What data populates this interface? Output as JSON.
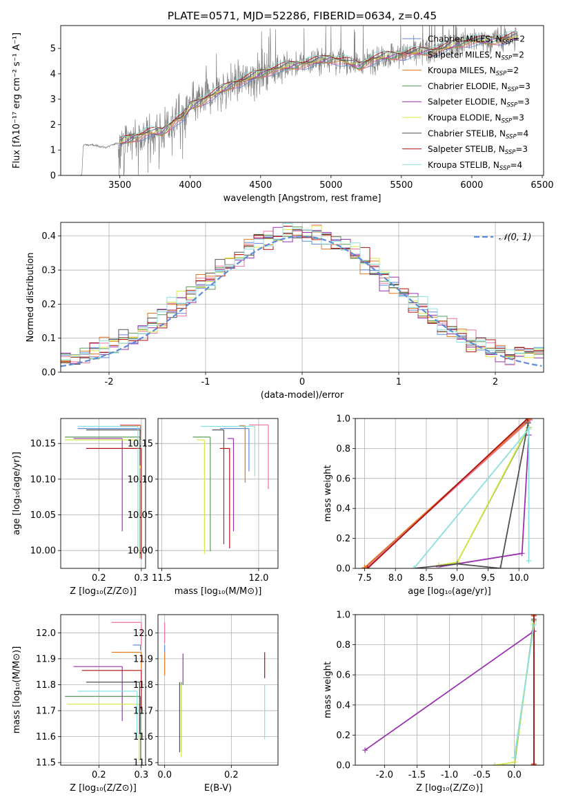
{
  "colors": {
    "chabrier_miles": "#5b8bd9",
    "salpeter_miles": "#f07098",
    "kroupa_miles": "#e07820",
    "chabrier_elodie": "#5a9a5a",
    "salpeter_elodie": "#9a30b0",
    "kroupa_elodie": "#d8e840",
    "chabrier_stelib": "#505050",
    "salpeter_stelib": "#b01010",
    "kroupa_stelib": "#88e0e0",
    "data": "#808080",
    "gauss": "#5b8bd9",
    "grid": "#b0b0b0"
  },
  "chart_data": [
    {
      "id": "spectrum",
      "type": "line",
      "title": "PLATE=0571, MJD=52286, FIBERID=0634, z=0.45",
      "xlabel": "wavelength [Angstrom, rest frame]",
      "ylabel": "Flux [fλ10⁻¹⁷ erg cm⁻² s⁻¹ A⁻¹]",
      "xlim": [
        3080,
        6510
      ],
      "ylim": [
        0,
        5.9
      ],
      "xticks": [
        3500,
        4000,
        4500,
        5000,
        5500,
        6000,
        6500
      ],
      "yticks": [
        0,
        1,
        2,
        3,
        4,
        5
      ],
      "grid": false,
      "legend_position": "top-right",
      "continuum": [
        [
          3210,
          0.0
        ],
        [
          3230,
          0.0
        ],
        [
          3240,
          1.2
        ],
        [
          3300,
          1.2
        ],
        [
          3400,
          1.1
        ],
        [
          3500,
          1.3
        ],
        [
          3600,
          1.5
        ],
        [
          3700,
          1.7
        ],
        [
          3800,
          1.7
        ],
        [
          3900,
          2.2
        ],
        [
          3950,
          2.3
        ],
        [
          4000,
          2.7
        ],
        [
          4100,
          3.0
        ],
        [
          4200,
          3.3
        ],
        [
          4300,
          3.6
        ],
        [
          4400,
          3.8
        ],
        [
          4500,
          4.0
        ],
        [
          4600,
          4.2
        ],
        [
          4700,
          4.3
        ],
        [
          4800,
          4.4
        ],
        [
          4900,
          4.5
        ],
        [
          5000,
          4.6
        ],
        [
          5100,
          4.5
        ],
        [
          5200,
          4.3
        ],
        [
          5300,
          4.6
        ],
        [
          5400,
          4.7
        ],
        [
          5500,
          4.75
        ],
        [
          5600,
          4.85
        ],
        [
          5700,
          4.9
        ],
        [
          5800,
          5.0
        ],
        [
          5900,
          5.2
        ],
        [
          6000,
          5.3
        ],
        [
          6100,
          5.3
        ],
        [
          6200,
          5.35
        ],
        [
          6300,
          5.45
        ],
        [
          6330,
          5.45
        ]
      ],
      "series": [
        {
          "name": "Chabrier MILES, N_SSP=2",
          "color_key": "chabrier_miles"
        },
        {
          "name": "Salpeter MILES, N_SSP=2",
          "color_key": "salpeter_miles"
        },
        {
          "name": "Kroupa MILES, N_SSP=2",
          "color_key": "kroupa_miles"
        },
        {
          "name": "Chabrier ELODIE, N_SSP=3",
          "color_key": "chabrier_elodie"
        },
        {
          "name": "Salpeter ELODIE, N_SSP=3",
          "color_key": "salpeter_elodie"
        },
        {
          "name": "Kroupa ELODIE, N_SSP=3",
          "color_key": "kroupa_elodie"
        },
        {
          "name": "Chabrier STELIB, N_SSP=4",
          "color_key": "chabrier_stelib"
        },
        {
          "name": "Salpeter STELIB, N_SSP=3",
          "color_key": "salpeter_stelib"
        },
        {
          "name": "Kroupa STELIB, N_SSP=4",
          "color_key": "kroupa_stelib"
        }
      ]
    },
    {
      "id": "residuals",
      "type": "line",
      "xlabel": "(data-model)/error",
      "ylabel": "Normed distribution",
      "xlim": [
        -2.5,
        2.5
      ],
      "ylim": [
        0,
        0.44
      ],
      "xticks": [
        -2,
        -1,
        0,
        1,
        2
      ],
      "yticks": [
        0.0,
        0.1,
        0.2,
        0.3,
        0.4
      ],
      "grid": true,
      "legend_position": "top-right",
      "gaussian_label": "𝒩(0, 1)",
      "bin_width": 0.1
    },
    {
      "id": "age_vs_z",
      "type": "scatter",
      "xlabel": "Z [log₁₀(Z/Z⊙)]",
      "ylabel": "age  [log₁₀(age/yr)]",
      "xlim": [
        0.11,
        0.31
      ],
      "ylim": [
        9.975,
        10.185
      ],
      "xticks": [
        0.2,
        0.3
      ],
      "yticks": [
        10.0,
        10.05,
        10.1,
        10.15
      ],
      "grid": true,
      "points": [
        {
          "color_key": "chabrier_miles",
          "x": 0.298,
          "y": 10.171,
          "xlo": 0.15,
          "yerr_lo": 0.005
        },
        {
          "color_key": "salpeter_miles",
          "x": 0.298,
          "y": 10.176,
          "xlo": 0.25,
          "yerr_lo": 0.012
        },
        {
          "color_key": "kroupa_miles",
          "x": 0.298,
          "y": 10.175,
          "xlo": 0.25,
          "yerr_lo": 0.02
        },
        {
          "color_key": "chabrier_elodie",
          "x": 0.297,
          "y": 10.159,
          "xlo": 0.12,
          "yerr_lo": 0.17
        },
        {
          "color_key": "salpeter_elodie",
          "x": 0.255,
          "y": 10.157,
          "xlo": 0.14,
          "yerr_lo": 0.13
        },
        {
          "color_key": "kroupa_elodie",
          "x": 0.297,
          "y": 10.155,
          "xlo": 0.12,
          "yerr_lo": 0.04
        },
        {
          "color_key": "chabrier_stelib",
          "x": 0.297,
          "y": 10.169,
          "xlo": 0.17,
          "yerr_lo": 0.05
        },
        {
          "color_key": "salpeter_stelib",
          "x": 0.3,
          "y": 10.143,
          "xlo": 0.17,
          "yerr_lo": 0.155
        },
        {
          "color_key": "kroupa_stelib",
          "x": 0.292,
          "y": 10.174,
          "xlo": 0.15,
          "yerr_lo": 0.17
        }
      ]
    },
    {
      "id": "age_vs_mass",
      "type": "scatter",
      "xlabel": "mass [log₁₀(M/M⊙)]",
      "xlim": [
        11.48,
        12.1
      ],
      "ylim": [
        9.975,
        10.185
      ],
      "xticks": [
        11.5,
        12.0
      ],
      "yticks": [
        10.0,
        10.05,
        10.1,
        10.15
      ],
      "grid": true,
      "points": [
        {
          "color_key": "chabrier_miles",
          "x": 11.95,
          "y": 10.171,
          "xlo": 11.8,
          "yerr_lo": 0.06
        },
        {
          "color_key": "salpeter_miles",
          "x": 12.05,
          "y": 10.176,
          "xlo": 11.95,
          "yerr_lo": 0.09
        },
        {
          "color_key": "kroupa_miles",
          "x": 11.93,
          "y": 10.175,
          "xlo": 11.9,
          "yerr_lo": 0.08
        },
        {
          "color_key": "chabrier_elodie",
          "x": 11.75,
          "y": 10.159,
          "xlo": 11.66,
          "yerr_lo": 0.16
        },
        {
          "color_key": "salpeter_elodie",
          "x": 11.87,
          "y": 10.157,
          "xlo": 11.84,
          "yerr_lo": 0.13
        },
        {
          "color_key": "kroupa_elodie",
          "x": 11.72,
          "y": 10.155,
          "xlo": 11.68,
          "yerr_lo": 0.16
        },
        {
          "color_key": "chabrier_stelib",
          "x": 11.82,
          "y": 10.169,
          "xlo": 11.76,
          "yerr_lo": 0.16
        },
        {
          "color_key": "salpeter_stelib",
          "x": 11.85,
          "y": 10.143,
          "xlo": 11.8,
          "yerr_lo": 0.14
        },
        {
          "color_key": "kroupa_stelib",
          "x": 11.98,
          "y": 10.174,
          "xlo": 11.7,
          "yerr_lo": 0.07
        }
      ]
    },
    {
      "id": "weight_vs_age",
      "type": "line",
      "xlabel": "age  [log₁₀(age/yr)]",
      "ylabel": "mass weight",
      "xlim": [
        7.35,
        10.4
      ],
      "ylim": [
        0,
        1.0
      ],
      "xticks": [
        7.5,
        8.0,
        8.5,
        9.0,
        9.5,
        10.0
      ],
      "yticks": [
        0.0,
        0.2,
        0.4,
        0.6,
        0.8,
        1.0
      ],
      "grid": true,
      "series": [
        {
          "color_key": "chabrier_miles",
          "points": [
            [
              7.5,
              0.0
            ],
            [
              10.17,
              1.0
            ]
          ]
        },
        {
          "color_key": "salpeter_miles",
          "points": [
            [
              7.52,
              0.0
            ],
            [
              10.18,
              0.99
            ]
          ]
        },
        {
          "color_key": "kroupa_miles",
          "points": [
            [
              7.5,
              0.005
            ],
            [
              10.17,
              0.995
            ]
          ]
        },
        {
          "color_key": "chabrier_elodie",
          "points": [
            [
              8.7,
              0.02
            ],
            [
              9.0,
              0.04
            ],
            [
              10.16,
              0.94
            ]
          ]
        },
        {
          "color_key": "salpeter_elodie",
          "points": [
            [
              8.7,
              0.01
            ],
            [
              10.05,
              0.1
            ],
            [
              10.16,
              0.89
            ]
          ]
        },
        {
          "color_key": "kroupa_elodie",
          "points": [
            [
              8.7,
              0.02
            ],
            [
              9.0,
              0.04
            ],
            [
              10.15,
              0.94
            ]
          ]
        },
        {
          "color_key": "chabrier_stelib",
          "points": [
            [
              8.3,
              0.0
            ],
            [
              9.0,
              0.03
            ],
            [
              9.7,
              0.0
            ],
            [
              10.15,
              0.97
            ]
          ]
        },
        {
          "color_key": "salpeter_stelib",
          "points": [
            [
              7.55,
              0.0
            ],
            [
              10.14,
              1.0
            ]
          ]
        },
        {
          "color_key": "kroupa_stelib",
          "points": [
            [
              8.3,
              0.0
            ],
            [
              10.16,
              0.93
            ],
            [
              10.16,
              0.05
            ]
          ]
        }
      ]
    },
    {
      "id": "mass_vs_z",
      "type": "scatter",
      "xlabel": "Z [log₁₀(Z/Z⊙)]",
      "ylabel": "mass [log₁₀(M/M⊙)]",
      "xlim": [
        0.11,
        0.31
      ],
      "ylim": [
        11.49,
        12.07
      ],
      "xticks": [
        0.2,
        0.3
      ],
      "yticks": [
        11.5,
        11.6,
        11.7,
        11.8,
        11.9,
        12.0
      ],
      "grid": true,
      "points": [
        {
          "color_key": "chabrier_miles",
          "x": 0.298,
          "y": 11.953,
          "xlo": 0.28,
          "yerr_lo": 0.02
        },
        {
          "color_key": "salpeter_miles",
          "x": 0.3,
          "y": 12.04,
          "xlo": 0.23,
          "yerr_lo": 0.09
        },
        {
          "color_key": "kroupa_miles",
          "x": 0.3,
          "y": 11.925,
          "xlo": 0.23,
          "yerr_lo": 0.07
        },
        {
          "color_key": "chabrier_elodie",
          "x": 0.298,
          "y": 11.755,
          "xlo": 0.12,
          "yerr_lo": 0.24
        },
        {
          "color_key": "salpeter_elodie",
          "x": 0.255,
          "y": 11.87,
          "xlo": 0.14,
          "yerr_lo": 0.21
        },
        {
          "color_key": "kroupa_elodie",
          "x": 0.295,
          "y": 11.725,
          "xlo": 0.125,
          "yerr_lo": 0.22
        },
        {
          "color_key": "chabrier_stelib",
          "x": 0.296,
          "y": 11.81,
          "xlo": 0.17,
          "yerr_lo": 0.2
        },
        {
          "color_key": "salpeter_stelib",
          "x": 0.3,
          "y": 11.855,
          "xlo": 0.16,
          "yerr_lo": 0.15
        },
        {
          "color_key": "kroupa_stelib",
          "x": 0.29,
          "y": 11.775,
          "xlo": 0.15,
          "yerr_lo": 0.18
        }
      ]
    },
    {
      "id": "mass_vs_ebv",
      "type": "scatter",
      "xlabel": "E(B-V)",
      "xlim": [
        -0.02,
        0.34
      ],
      "ylim": [
        11.49,
        12.07
      ],
      "xticks": [
        0.0,
        0.2
      ],
      "yticks": [
        11.5,
        11.6,
        11.7,
        11.8,
        11.9,
        12.0
      ],
      "grid": true,
      "points": [
        {
          "color_key": "chabrier_miles",
          "x": 0.0,
          "y": 11.953,
          "yerr_lo": 0.03
        },
        {
          "color_key": "salpeter_miles",
          "x": 0.0,
          "y": 12.04,
          "yerr_lo": 0.08
        },
        {
          "color_key": "kroupa_miles",
          "x": 0.0,
          "y": 11.925,
          "yerr_lo": 0.09
        },
        {
          "color_key": "chabrier_elodie",
          "x": 0.05,
          "y": 11.81,
          "yerr_lo": 0.27
        },
        {
          "color_key": "salpeter_elodie",
          "x": 0.055,
          "y": 11.92,
          "yerr_lo": 0.12
        },
        {
          "color_key": "kroupa_elodie",
          "x": 0.05,
          "y": 11.8,
          "yerr_lo": 0.28
        },
        {
          "color_key": "chabrier_stelib",
          "x": 0.045,
          "y": 11.81,
          "yerr_lo": 0.27
        },
        {
          "color_key": "salpeter_stelib",
          "x": 0.3,
          "y": 11.925,
          "yerr_lo": 0.1
        },
        {
          "color_key": "kroupa_stelib",
          "x": 0.3,
          "y": 11.8,
          "yerr_lo": 0.21
        }
      ]
    },
    {
      "id": "weight_vs_z",
      "type": "line",
      "xlabel": "Z [log₁₀(Z/Z⊙)]",
      "ylabel": "mass weight",
      "xlim": [
        -2.45,
        0.45
      ],
      "ylim": [
        0,
        1.0
      ],
      "xticks": [
        -2.0,
        -1.5,
        -1.0,
        -0.5,
        0.0
      ],
      "yticks": [
        0.0,
        0.2,
        0.4,
        0.6,
        0.8,
        1.0
      ],
      "grid": true,
      "series": [
        {
          "color_key": "chabrier_miles",
          "points": [
            [
              0.3,
              0.0
            ],
            [
              0.3,
              1.0
            ]
          ]
        },
        {
          "color_key": "salpeter_miles",
          "points": [
            [
              0.3,
              0.01
            ],
            [
              0.3,
              0.99
            ]
          ]
        },
        {
          "color_key": "kroupa_miles",
          "points": [
            [
              0.3,
              0.005
            ],
            [
              0.3,
              0.995
            ]
          ]
        },
        {
          "color_key": "chabrier_elodie",
          "points": [
            [
              -0.3,
              0.0
            ],
            [
              0.0,
              0.0
            ],
            [
              0.3,
              0.96
            ]
          ]
        },
        {
          "color_key": "salpeter_elodie",
          "points": [
            [
              -2.3,
              0.1
            ],
            [
              0.3,
              0.89
            ]
          ]
        },
        {
          "color_key": "kroupa_elodie",
          "points": [
            [
              -0.3,
              0.0
            ],
            [
              0.0,
              0.02
            ],
            [
              0.3,
              0.94
            ]
          ]
        },
        {
          "color_key": "chabrier_stelib",
          "points": [
            [
              0.3,
              0.0
            ],
            [
              0.3,
              0.97
            ]
          ]
        },
        {
          "color_key": "salpeter_stelib",
          "points": [
            [
              0.3,
              0.0
            ],
            [
              0.3,
              1.0
            ]
          ]
        },
        {
          "color_key": "kroupa_stelib",
          "points": [
            [
              0.0,
              0.05
            ],
            [
              0.3,
              0.93
            ]
          ]
        }
      ]
    }
  ]
}
